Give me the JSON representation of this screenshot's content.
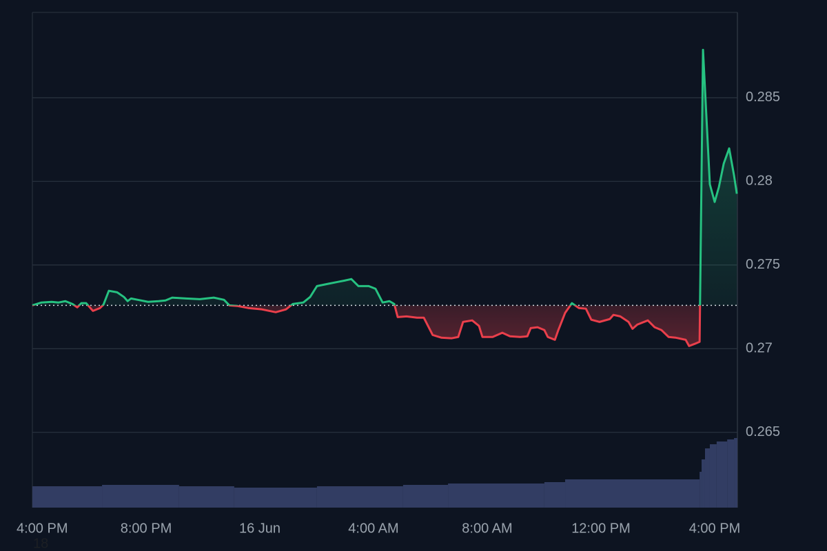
{
  "chart_data": {
    "type": "baseline-line",
    "x": [
      0.0,
      0.32,
      0.68,
      0.92,
      1.16,
      1.41,
      1.58,
      1.72,
      1.89,
      2.13,
      2.38,
      2.5,
      2.69,
      2.98,
      3.22,
      3.35,
      3.47,
      3.71,
      4.07,
      4.44,
      4.68,
      4.92,
      5.41,
      5.89,
      6.38,
      6.74,
      6.93,
      7.22,
      7.59,
      8.07,
      8.56,
      8.92,
      9.16,
      9.53,
      9.77,
      10.01,
      10.38,
      10.74,
      10.98,
      11.22,
      11.47,
      11.83,
      12.07,
      12.32,
      12.56,
      12.73,
      12.85,
      13.16,
      13.53,
      13.77,
      14.08,
      14.38,
      14.74,
      14.98,
      15.15,
      15.47,
      15.71,
      15.83,
      16.19,
      16.53,
      16.8,
      17.16,
      17.41,
      17.53,
      17.77,
      18.01,
      18.13,
      18.38,
      18.5,
      18.74,
      18.98,
      19.22,
      19.47,
      19.66,
      19.95,
      20.31,
      20.44,
      20.68,
      20.97,
      21.11,
      21.28,
      21.65,
      21.89,
      22.13,
      22.38,
      22.62,
      22.98,
      23.1,
      23.3,
      23.47,
      23.59,
      23.83,
      24.0,
      24.15,
      24.32,
      24.51,
      24.68,
      24.78
    ],
    "values": [
      0.27259,
      0.27276,
      0.2728,
      0.27276,
      0.27284,
      0.27267,
      0.27247,
      0.27272,
      0.27272,
      0.27226,
      0.27243,
      0.27263,
      0.27346,
      0.27337,
      0.27309,
      0.27284,
      0.273,
      0.27292,
      0.2728,
      0.27284,
      0.27288,
      0.27305,
      0.273,
      0.27296,
      0.27305,
      0.27292,
      0.27259,
      0.27255,
      0.27243,
      0.27235,
      0.27218,
      0.27235,
      0.27267,
      0.27276,
      0.27309,
      0.27374,
      0.27387,
      0.27399,
      0.27407,
      0.27416,
      0.27374,
      0.27374,
      0.27358,
      0.27276,
      0.27284,
      0.27267,
      0.27189,
      0.27193,
      0.27185,
      0.27185,
      0.27082,
      0.27066,
      0.27062,
      0.2707,
      0.2716,
      0.27169,
      0.27136,
      0.2707,
      0.2707,
      0.27095,
      0.27074,
      0.2707,
      0.27074,
      0.27123,
      0.27128,
      0.27111,
      0.2707,
      0.27053,
      0.27111,
      0.27214,
      0.27272,
      0.27243,
      0.27239,
      0.27173,
      0.2716,
      0.27177,
      0.27202,
      0.27193,
      0.2716,
      0.27119,
      0.27144,
      0.27169,
      0.27128,
      0.27111,
      0.2707,
      0.27066,
      0.27053,
      0.27016,
      0.27029,
      0.27041,
      0.28786,
      0.27983,
      0.27877,
      0.27967,
      0.28107,
      0.28197,
      0.28037,
      0.27926
    ],
    "baseline": 0.27259,
    "up_color": "#26c281",
    "down_color": "#ea3f4b",
    "xlim": [
      0,
      24.8
    ],
    "xticks": [
      {
        "value": 0,
        "label": "4:00 PM"
      },
      {
        "value": 4,
        "label": "8:00 PM"
      },
      {
        "value": 8,
        "label": "16 Jun"
      },
      {
        "value": 12,
        "label": "4:00 AM"
      },
      {
        "value": 16,
        "label": "8:00 AM"
      },
      {
        "value": 20,
        "label": "12:00 PM"
      },
      {
        "value": 24,
        "label": "4:00 PM"
      }
    ],
    "ylim": [
      0.2605,
      0.2901
    ],
    "yticks": [
      0.265,
      0.27,
      0.275,
      0.28,
      0.285
    ],
    "grid": true,
    "volume": {
      "axis": "y2",
      "color": "#323d63",
      "x": [
        0,
        2.45,
        5.16,
        7.1,
        10.01,
        13.04,
        14.62,
        18.01,
        18.74,
        23.47,
        23.54,
        23.66,
        23.83,
        24.07,
        24.44,
        24.68
      ],
      "values": [
        31,
        33,
        31,
        29,
        31,
        33,
        35,
        37,
        41,
        52,
        70,
        86,
        92,
        96,
        99,
        101
      ]
    },
    "y2lim": [
      0,
      719
    ],
    "annotation": "18"
  }
}
